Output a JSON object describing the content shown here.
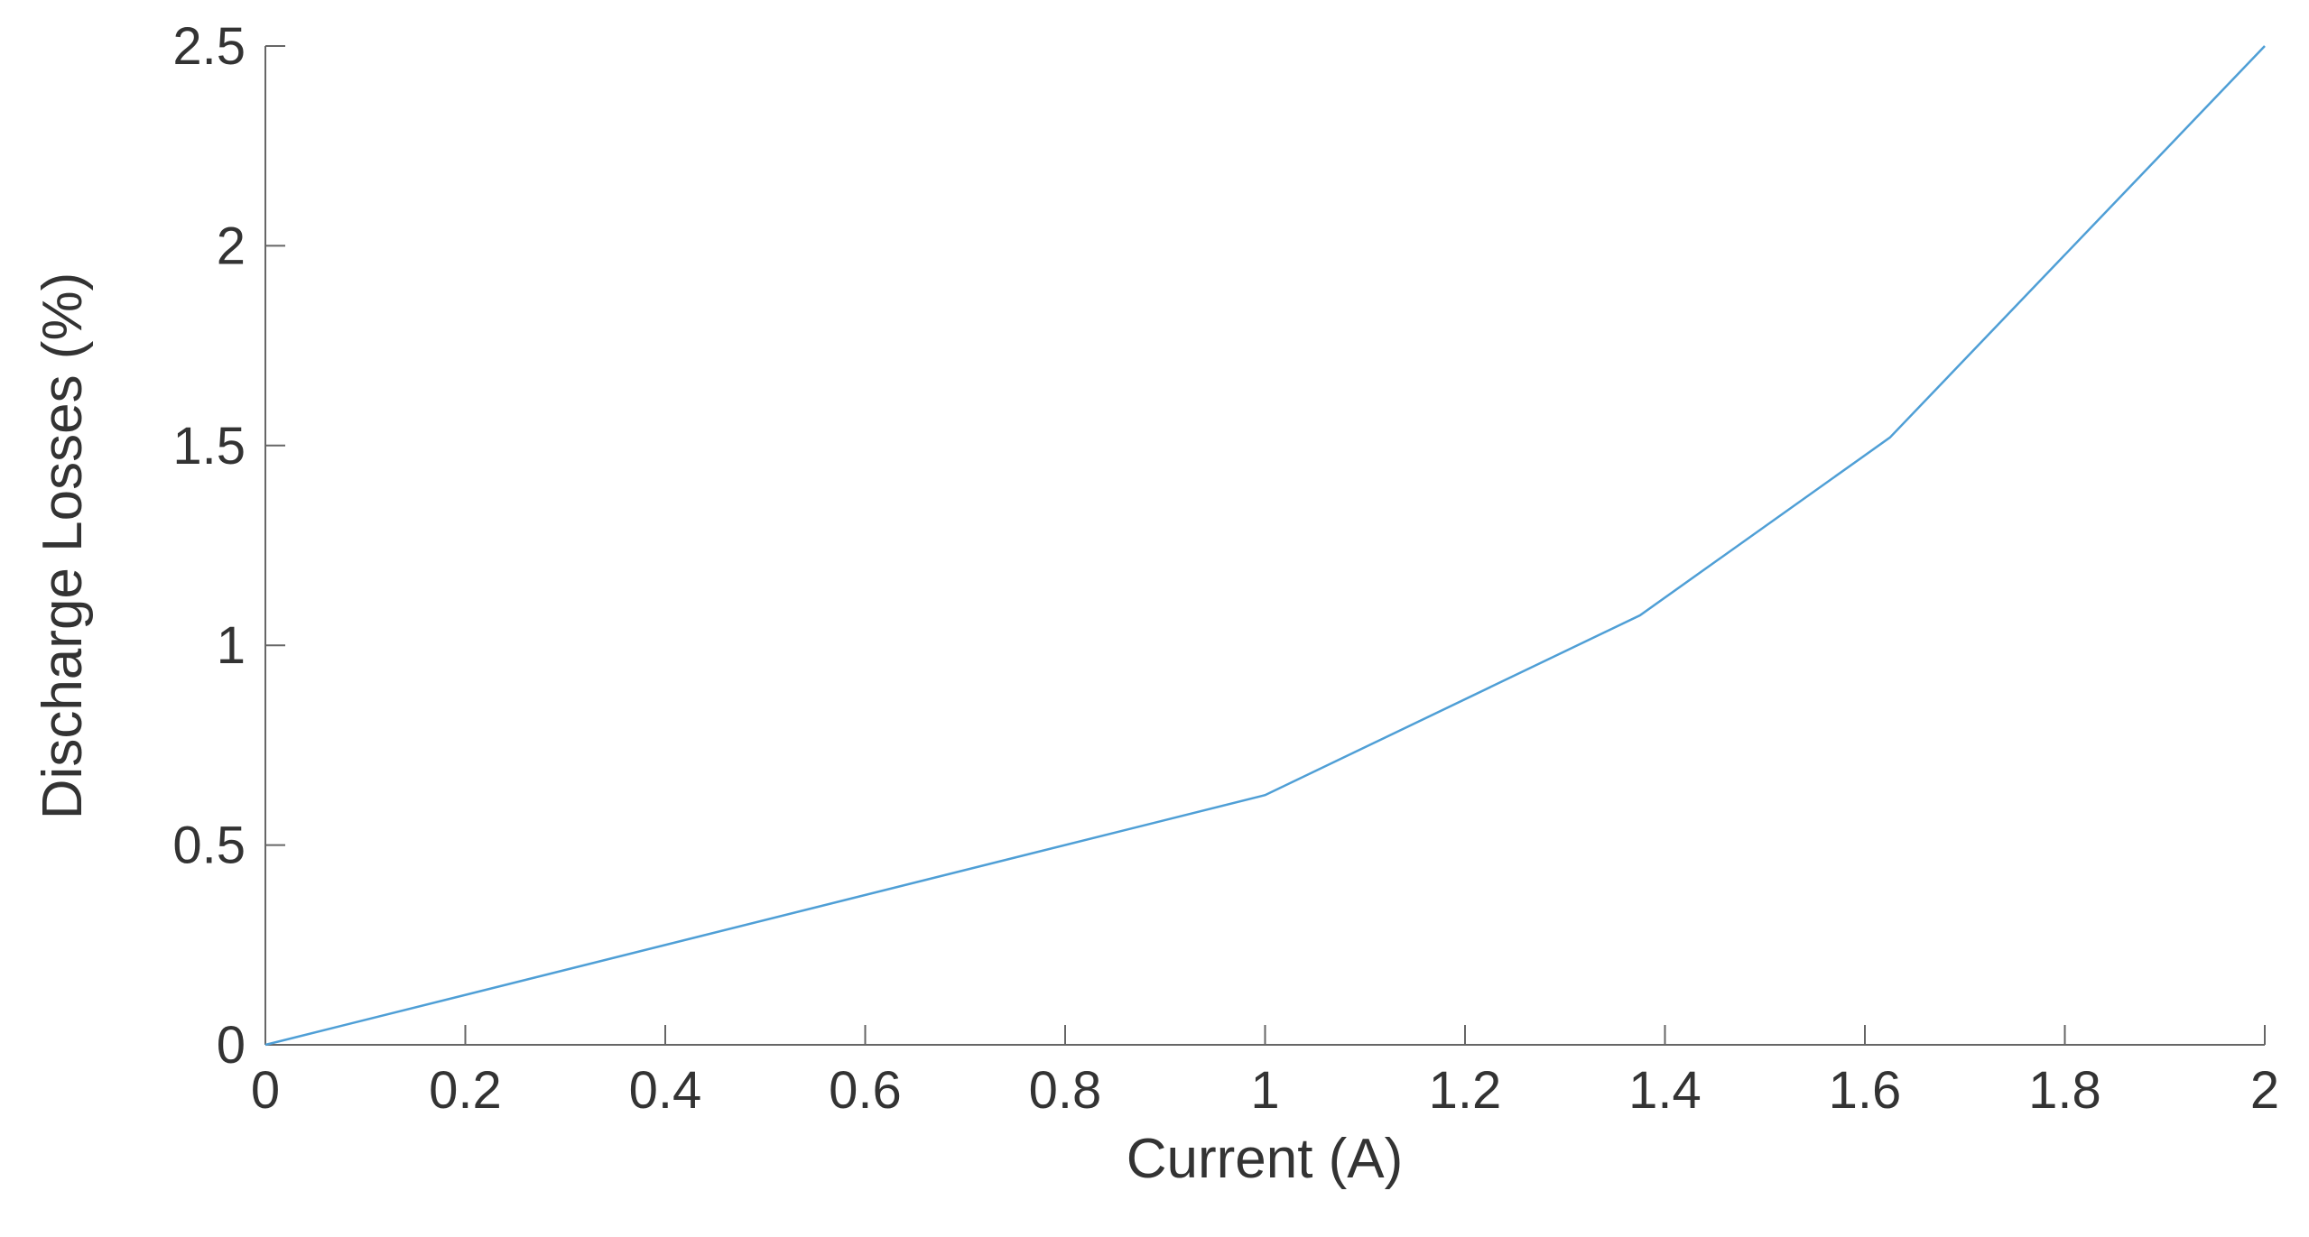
{
  "chart_data": {
    "type": "line",
    "xlabel": "Current  (A)",
    "ylabel": "Discharge Losses  (%)",
    "x": [
      0,
      1,
      1.375,
      1.625,
      2
    ],
    "series": [
      {
        "color": "#4f9fd6",
        "values": [
          0,
          0.625,
          1.075,
          1.52,
          2.5
        ]
      }
    ],
    "xlim": [
      0,
      2
    ],
    "ylim": [
      0,
      2.5
    ],
    "xticks": [
      0,
      0.2,
      0.4,
      0.6,
      0.8,
      1,
      1.2,
      1.4,
      1.6,
      1.8,
      2
    ],
    "yticks": [
      0,
      0.5,
      1,
      1.5,
      2,
      2.5
    ],
    "grid": false
  }
}
